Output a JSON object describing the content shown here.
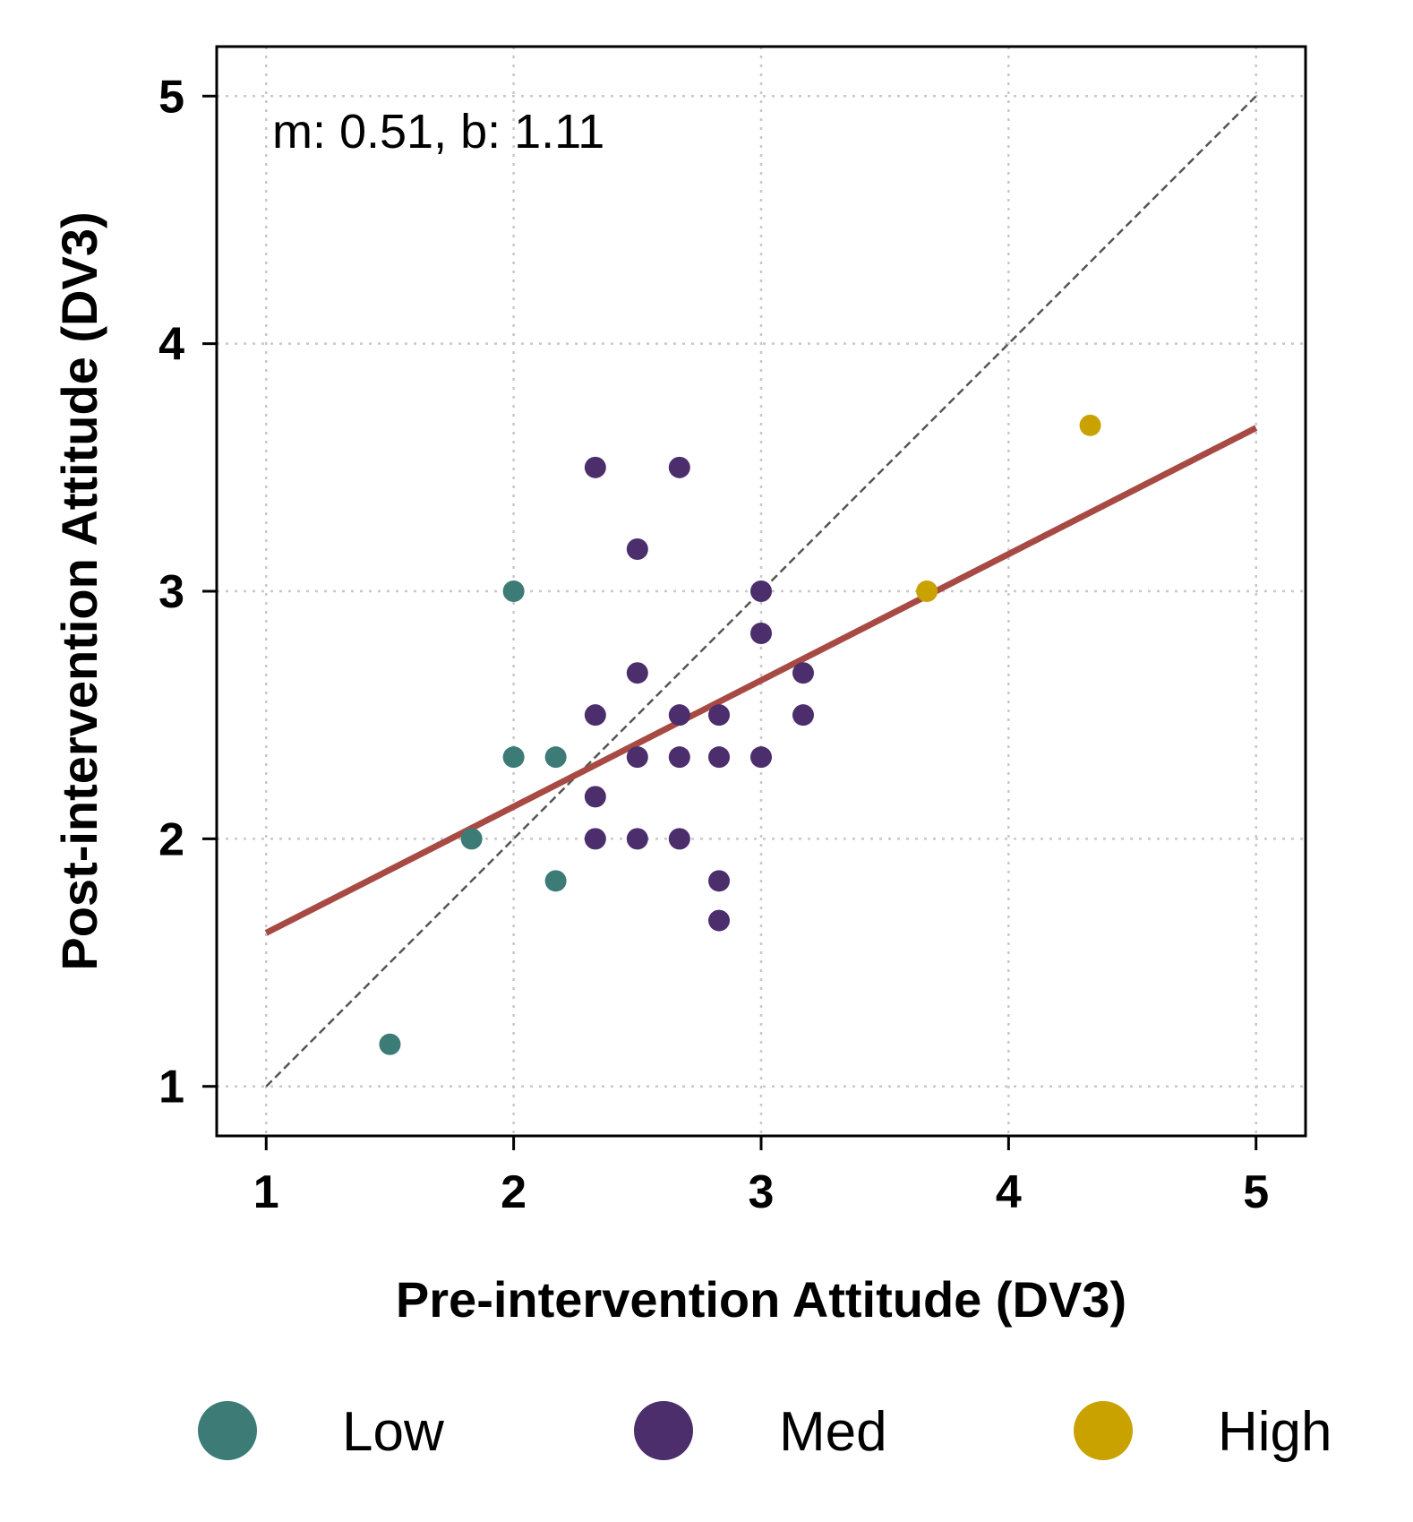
{
  "chart_data": {
    "type": "scatter",
    "title": "",
    "xlabel": "Pre-intervention Attitude (DV3)",
    "ylabel": "Post-intervention Attitude (DV3)",
    "xlim": [
      0.8,
      5.2
    ],
    "ylim": [
      0.8,
      5.2
    ],
    "xticks": [
      "1",
      "2",
      "3",
      "4",
      "5"
    ],
    "yticks": [
      "1",
      "2",
      "3",
      "4",
      "5"
    ],
    "grid": true,
    "annotation": "m: 0.51, b: 1.11",
    "identity_line": {
      "from": [
        1,
        1
      ],
      "to": [
        5,
        5
      ]
    },
    "fit_line": {
      "slope": 0.51,
      "intercept": 1.11,
      "x_range": [
        1,
        5
      ],
      "color": "#a84a44"
    },
    "legend_position": "bottom",
    "series": [
      {
        "name": "Low",
        "color": "#3d7b77",
        "points": [
          [
            1.5,
            1.17
          ],
          [
            1.83,
            2.0
          ],
          [
            2.0,
            3.0
          ],
          [
            2.0,
            2.33
          ],
          [
            2.17,
            2.33
          ],
          [
            2.17,
            1.83
          ]
        ]
      },
      {
        "name": "Med",
        "color": "#4b2e6b",
        "points": [
          [
            2.33,
            3.5
          ],
          [
            2.67,
            3.5
          ],
          [
            2.5,
            3.17
          ],
          [
            3.0,
            3.0
          ],
          [
            3.0,
            2.83
          ],
          [
            2.5,
            2.67
          ],
          [
            3.17,
            2.67
          ],
          [
            2.33,
            2.5
          ],
          [
            2.67,
            2.5
          ],
          [
            2.83,
            2.5
          ],
          [
            3.17,
            2.5
          ],
          [
            2.5,
            2.33
          ],
          [
            2.67,
            2.33
          ],
          [
            2.83,
            2.33
          ],
          [
            3.0,
            2.33
          ],
          [
            2.33,
            2.17
          ],
          [
            2.33,
            2.0
          ],
          [
            2.5,
            2.0
          ],
          [
            2.67,
            2.0
          ],
          [
            2.83,
            1.83
          ],
          [
            2.83,
            1.67
          ]
        ]
      },
      {
        "name": "High",
        "color": "#c9a200",
        "points": [
          [
            4.33,
            3.67
          ],
          [
            3.67,
            3.0
          ]
        ]
      }
    ]
  }
}
